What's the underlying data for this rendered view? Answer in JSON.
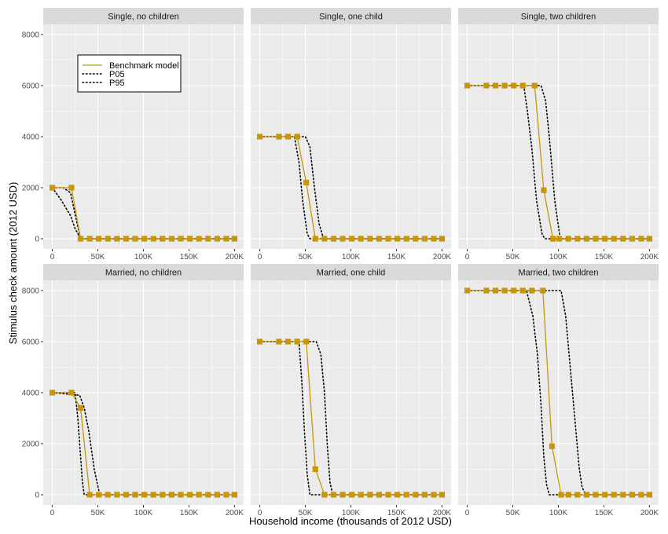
{
  "chart_data": {
    "type": "line",
    "xlabel": "Household income (thousands of 2012 USD)",
    "ylabel": "Stimulus check amount (2012 USD)",
    "xlim": [
      0,
      200
    ],
    "ylim": [
      0,
      8000
    ],
    "x_ticks": [
      0,
      50,
      100,
      150,
      200
    ],
    "x_tick_labels": [
      "0",
      "50K",
      "100K",
      "150K",
      "200K"
    ],
    "y_ticks": [
      0,
      2000,
      4000,
      6000,
      8000
    ],
    "y_tick_labels": [
      "0",
      "2000",
      "4000",
      "6000",
      "8000"
    ],
    "grid": true,
    "legend": {
      "placement": "inside-top-left",
      "entries": [
        "Benchmark model",
        "P05",
        "P95"
      ]
    },
    "colors": {
      "benchmark": "#c8960a",
      "bounds": "#000000",
      "panel_bg": "#ebebeb",
      "strip_bg": "#d9d9d9",
      "grid": "#ffffff"
    },
    "panels": [
      {
        "title": "Single, no children",
        "benchmark": {
          "x": [
            0,
            21,
            31,
            41,
            51,
            61,
            71,
            81,
            91,
            101,
            111,
            121,
            131,
            141,
            151,
            161,
            171,
            181,
            191,
            200
          ],
          "y": [
            2000,
            2000,
            0,
            0,
            0,
            0,
            0,
            0,
            0,
            0,
            0,
            0,
            0,
            0,
            0,
            0,
            0,
            0,
            0,
            0
          ]
        },
        "p05": {
          "x": [
            0,
            12,
            20,
            26,
            31,
            40,
            200
          ],
          "y": [
            2000,
            2000,
            1800,
            800,
            0,
            0,
            0
          ]
        },
        "p95": {
          "x": [
            0,
            10,
            20,
            25,
            31,
            200
          ],
          "y": [
            2000,
            1500,
            900,
            400,
            0,
            0
          ]
        }
      },
      {
        "title": "Single, one child",
        "benchmark": {
          "x": [
            0,
            21,
            31,
            41,
            51,
            61,
            71,
            81,
            91,
            101,
            111,
            121,
            131,
            141,
            151,
            161,
            171,
            181,
            191,
            200
          ],
          "y": [
            4000,
            4000,
            4000,
            4000,
            2200,
            0,
            0,
            0,
            0,
            0,
            0,
            0,
            0,
            0,
            0,
            0,
            0,
            0,
            0,
            0
          ]
        },
        "p05": {
          "x": [
            0,
            38,
            43,
            47,
            52,
            55,
            200
          ],
          "y": [
            4000,
            4000,
            3000,
            1500,
            200,
            0,
            0
          ]
        },
        "p95": {
          "x": [
            0,
            50,
            55,
            60,
            65,
            70,
            200
          ],
          "y": [
            4000,
            4000,
            3600,
            2000,
            600,
            0,
            0
          ]
        }
      },
      {
        "title": "Single, two children",
        "benchmark": {
          "x": [
            0,
            21,
            31,
            41,
            51,
            61,
            74,
            84,
            94,
            101,
            111,
            121,
            131,
            141,
            151,
            161,
            171,
            181,
            191,
            200
          ],
          "y": [
            6000,
            6000,
            6000,
            6000,
            6000,
            6000,
            6000,
            1900,
            0,
            0,
            0,
            0,
            0,
            0,
            0,
            0,
            0,
            0,
            0,
            0
          ]
        },
        "p05": {
          "x": [
            0,
            62,
            66,
            71,
            76,
            82,
            85,
            200
          ],
          "y": [
            6000,
            6000,
            5000,
            3500,
            1500,
            200,
            0,
            0
          ]
        },
        "p95": {
          "x": [
            0,
            81,
            86,
            90,
            96,
            102,
            200
          ],
          "y": [
            6000,
            6000,
            5400,
            4000,
            1500,
            0,
            0
          ]
        }
      },
      {
        "title": "Married, no children",
        "benchmark": {
          "x": [
            0,
            21,
            31,
            41,
            51,
            61,
            71,
            81,
            91,
            101,
            111,
            121,
            131,
            141,
            151,
            161,
            171,
            181,
            191,
            200
          ],
          "y": [
            4000,
            4000,
            3400,
            0,
            0,
            0,
            0,
            0,
            0,
            0,
            0,
            0,
            0,
            0,
            0,
            0,
            0,
            0,
            0,
            0
          ]
        },
        "p05": {
          "x": [
            0,
            25,
            28,
            31,
            33,
            35,
            40,
            200
          ],
          "y": [
            4000,
            4000,
            3000,
            1500,
            500,
            0,
            0,
            0
          ]
        },
        "p95": {
          "x": [
            0,
            30,
            35,
            40,
            46,
            52,
            200
          ],
          "y": [
            4000,
            3900,
            3400,
            2500,
            1000,
            0,
            0
          ]
        }
      },
      {
        "title": "Married, one child",
        "benchmark": {
          "x": [
            0,
            21,
            31,
            41,
            51,
            61,
            71,
            81,
            91,
            101,
            111,
            121,
            131,
            141,
            151,
            161,
            171,
            181,
            191,
            200
          ],
          "y": [
            6000,
            6000,
            6000,
            6000,
            6000,
            1000,
            0,
            0,
            0,
            0,
            0,
            0,
            0,
            0,
            0,
            0,
            0,
            0,
            0,
            0
          ]
        },
        "p05": {
          "x": [
            0,
            43,
            46,
            49,
            52,
            55,
            60,
            200
          ],
          "y": [
            6000,
            6000,
            4500,
            2500,
            800,
            0,
            0,
            0
          ]
        },
        "p95": {
          "x": [
            0,
            62,
            67,
            71,
            74,
            77,
            80,
            200
          ],
          "y": [
            6000,
            6000,
            5500,
            4000,
            2000,
            500,
            0,
            0
          ]
        }
      },
      {
        "title": "Married, two children",
        "benchmark": {
          "x": [
            0,
            21,
            31,
            41,
            51,
            61,
            71,
            83,
            93,
            103,
            111,
            121,
            131,
            141,
            151,
            161,
            171,
            181,
            191,
            200
          ],
          "y": [
            8000,
            8000,
            8000,
            8000,
            8000,
            8000,
            8000,
            8000,
            1900,
            0,
            0,
            0,
            0,
            0,
            0,
            0,
            0,
            0,
            0,
            0
          ]
        },
        "p05": {
          "x": [
            0,
            65,
            72,
            77,
            81,
            84,
            87,
            90,
            200
          ],
          "y": [
            8000,
            8000,
            7000,
            5500,
            3500,
            1500,
            400,
            0,
            0
          ]
        },
        "p95": {
          "x": [
            0,
            103,
            108,
            113,
            118,
            123,
            126,
            130,
            200
          ],
          "y": [
            8000,
            8000,
            7000,
            5000,
            3000,
            1000,
            300,
            0,
            0
          ]
        }
      }
    ]
  }
}
